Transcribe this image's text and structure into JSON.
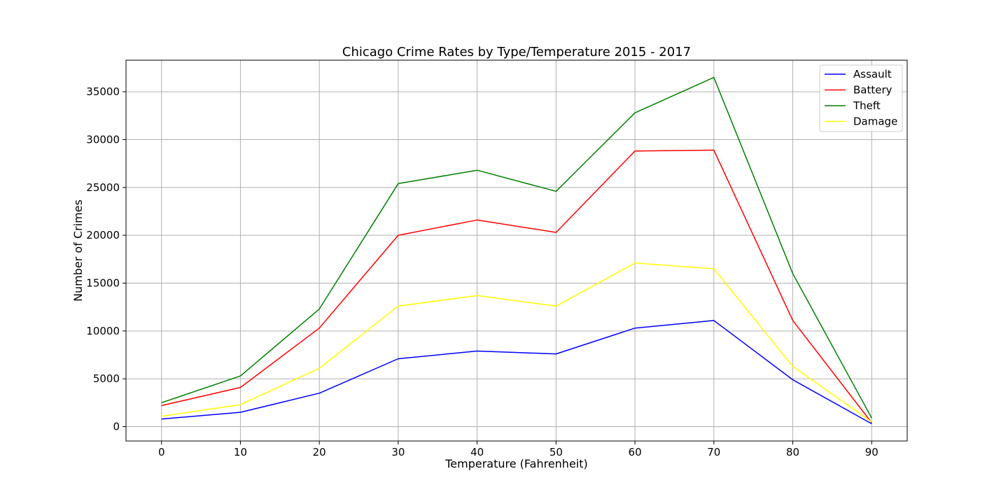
{
  "chart_data": {
    "type": "line",
    "title": "Chicago Crime Rates by Type/Temperature 2015 - 2017",
    "xlabel": "Temperature (Fahrenheit)",
    "ylabel": "Number of Crimes",
    "x": [
      0,
      10,
      20,
      30,
      40,
      50,
      60,
      70,
      80,
      90
    ],
    "xticks": [
      0,
      10,
      20,
      30,
      40,
      50,
      60,
      70,
      80,
      90
    ],
    "yticks": [
      0,
      5000,
      10000,
      15000,
      20000,
      25000,
      30000,
      35000
    ],
    "xlim": [
      -4.5,
      94.5
    ],
    "ylim": [
      -1500,
      38300
    ],
    "grid": true,
    "legend_position": "top-right",
    "series": [
      {
        "name": "Assault",
        "color": "#0000ff",
        "values": [
          800,
          1500,
          3500,
          7100,
          7900,
          7600,
          10300,
          11100,
          4900,
          300
        ]
      },
      {
        "name": "Battery",
        "color": "#ff0000",
        "values": [
          2200,
          4100,
          10300,
          20000,
          21600,
          20300,
          28800,
          28900,
          11100,
          400
        ]
      },
      {
        "name": "Theft",
        "color": "#008000",
        "values": [
          2500,
          5300,
          12300,
          25400,
          26800,
          24600,
          32800,
          36500,
          16000,
          900
        ]
      },
      {
        "name": "Damage",
        "color": "#ffff00",
        "values": [
          1100,
          2300,
          6100,
          12600,
          13700,
          12600,
          17100,
          16500,
          6300,
          500
        ]
      }
    ]
  }
}
